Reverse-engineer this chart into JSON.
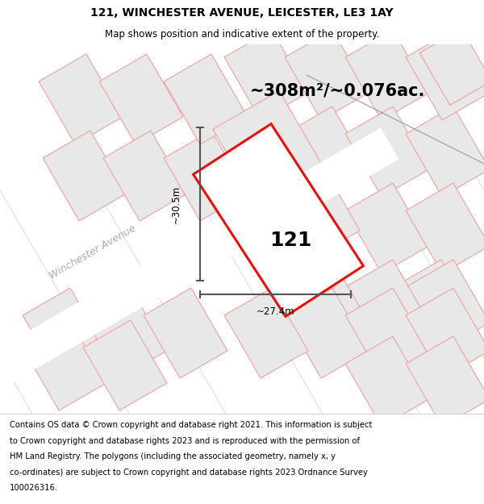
{
  "title": "121, WINCHESTER AVENUE, LEICESTER, LE3 1AY",
  "subtitle": "Map shows position and indicative extent of the property.",
  "area_text": "~308m²/~0.076ac.",
  "label_121": "121",
  "dim_width": "~27.4m",
  "dim_height": "~30.5m",
  "street_label": "Winchester Avenue",
  "footer_lines": [
    "Contains OS data © Crown copyright and database right 2021. This information is subject",
    "to Crown copyright and database rights 2023 and is reproduced with the permission of",
    "HM Land Registry. The polygons (including the associated geometry, namely x, y",
    "co-ordinates) are subject to Crown copyright and database rights 2023 Ordnance Survey",
    "100026316."
  ],
  "map_bg": "#f5f5f5",
  "plot_fill": "#e8e8e8",
  "plot_edge": "#e8100a",
  "neighbor_fill": "#e8e8e8",
  "neighbor_edge": "#f0a0a0",
  "road_color": "#ffffff",
  "dim_color": "#555555",
  "street_color": "#aaaaaa",
  "figsize": [
    6.0,
    6.25
  ],
  "dpi": 100,
  "title_fontsize": 10,
  "subtitle_fontsize": 8.5,
  "area_fontsize": 15,
  "label_fontsize": 18,
  "dim_fontsize": 8.5,
  "footer_fontsize": 7.2
}
